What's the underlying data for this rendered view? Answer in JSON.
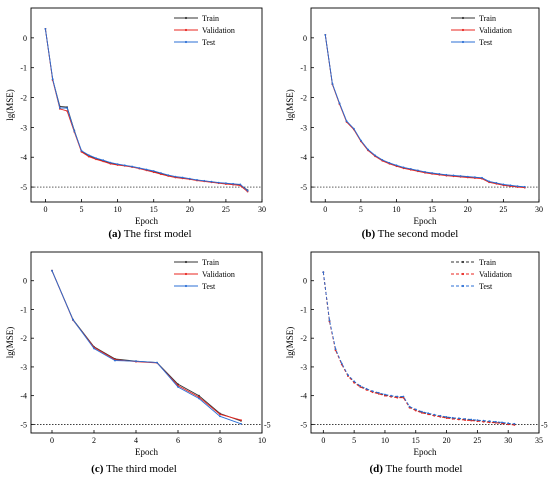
{
  "chart_data": [
    {
      "type": "line",
      "caption_bold": "(a)",
      "caption_text": " The first model",
      "xlabel": "Epoch",
      "ylabel": "lg(MSE)",
      "xlim": [
        -2,
        30
      ],
      "ylim": [
        -5.5,
        1
      ],
      "xticks": [
        "0",
        "5",
        "10",
        "15",
        "20",
        "25",
        "30"
      ],
      "yticks": [
        "0",
        "-1",
        "-2",
        "-3",
        "-4",
        "-5"
      ],
      "ref_label": "",
      "legend_position": "top-right",
      "series": [
        {
          "name": "Train",
          "color": "#333333",
          "dash": "",
          "x": [
            0,
            1,
            2,
            3,
            4,
            5,
            6,
            7,
            8,
            9,
            10,
            11,
            12,
            13,
            14,
            15,
            16,
            17,
            18,
            19,
            20,
            21,
            22,
            23,
            24,
            25,
            26,
            27,
            28
          ],
          "y": [
            0.3,
            -1.4,
            -2.3,
            -2.32,
            -3.1,
            -3.8,
            -3.95,
            -4.05,
            -4.12,
            -4.2,
            -4.25,
            -4.28,
            -4.32,
            -4.37,
            -4.42,
            -4.48,
            -4.55,
            -4.62,
            -4.67,
            -4.7,
            -4.73,
            -4.77,
            -4.8,
            -4.83,
            -4.86,
            -4.88,
            -4.91,
            -4.93,
            -5.1
          ]
        },
        {
          "name": "Validation",
          "color": "#e8251f",
          "dash": "",
          "x": [
            0,
            1,
            2,
            3,
            4,
            5,
            6,
            7,
            8,
            9,
            10,
            11,
            12,
            13,
            14,
            15,
            16,
            17,
            18,
            19,
            20,
            21,
            22,
            23,
            24,
            25,
            26,
            27,
            28
          ],
          "y": [
            0.3,
            -1.42,
            -2.38,
            -2.45,
            -3.15,
            -3.82,
            -3.98,
            -4.07,
            -4.14,
            -4.22,
            -4.26,
            -4.29,
            -4.33,
            -4.38,
            -4.44,
            -4.5,
            -4.57,
            -4.63,
            -4.68,
            -4.71,
            -4.74,
            -4.78,
            -4.81,
            -4.84,
            -4.87,
            -4.9,
            -4.92,
            -4.95,
            -5.15
          ]
        },
        {
          "name": "Test",
          "color": "#2b6fd6",
          "dash": "",
          "x": [
            0,
            1,
            2,
            3,
            4,
            5,
            6,
            7,
            8,
            9,
            10,
            11,
            12,
            13,
            14,
            15,
            16,
            17,
            18,
            19,
            20,
            21,
            22,
            23,
            24,
            25,
            26,
            27,
            28
          ],
          "y": [
            0.3,
            -1.38,
            -2.35,
            -2.35,
            -3.12,
            -3.78,
            -3.93,
            -4.03,
            -4.1,
            -4.18,
            -4.23,
            -4.27,
            -4.31,
            -4.36,
            -4.41,
            -4.46,
            -4.53,
            -4.6,
            -4.65,
            -4.68,
            -4.72,
            -4.76,
            -4.79,
            -4.82,
            -4.85,
            -4.87,
            -4.89,
            -4.91,
            -5.12
          ]
        }
      ]
    },
    {
      "type": "line",
      "caption_bold": "(b)",
      "caption_text": " The second model",
      "xlabel": "Epoch",
      "ylabel": "lg(MSE)",
      "xlim": [
        -2,
        30
      ],
      "ylim": [
        -5.5,
        1
      ],
      "xticks": [
        "0",
        "5",
        "10",
        "15",
        "20",
        "25",
        "30"
      ],
      "yticks": [
        "0",
        "-1",
        "-2",
        "-3",
        "-4",
        "-5"
      ],
      "ref_label": "",
      "legend_position": "top-right",
      "series": [
        {
          "name": "Train",
          "color": "#333333",
          "dash": "",
          "x": [
            0,
            1,
            2,
            3,
            4,
            5,
            6,
            7,
            8,
            9,
            10,
            11,
            12,
            13,
            14,
            15,
            16,
            17,
            18,
            19,
            20,
            21,
            22,
            23,
            24,
            25,
            26,
            27,
            28
          ],
          "y": [
            0.1,
            -1.55,
            -2.2,
            -2.8,
            -3.05,
            -3.45,
            -3.75,
            -3.95,
            -4.1,
            -4.2,
            -4.28,
            -4.35,
            -4.4,
            -4.45,
            -4.5,
            -4.54,
            -4.57,
            -4.6,
            -4.62,
            -4.64,
            -4.66,
            -4.68,
            -4.7,
            -4.82,
            -4.87,
            -4.92,
            -4.95,
            -4.98,
            -5.0
          ]
        },
        {
          "name": "Validation",
          "color": "#e8251f",
          "dash": "",
          "x": [
            0,
            1,
            2,
            3,
            4,
            5,
            6,
            7,
            8,
            9,
            10,
            11,
            12,
            13,
            14,
            15,
            16,
            17,
            18,
            19,
            20,
            21,
            22,
            23,
            24,
            25,
            26,
            27,
            28
          ],
          "y": [
            0.1,
            -1.56,
            -2.22,
            -2.82,
            -3.07,
            -3.47,
            -3.77,
            -3.97,
            -4.12,
            -4.22,
            -4.3,
            -4.37,
            -4.42,
            -4.47,
            -4.52,
            -4.56,
            -4.59,
            -4.62,
            -4.64,
            -4.66,
            -4.68,
            -4.7,
            -4.72,
            -4.84,
            -4.89,
            -4.94,
            -4.97,
            -5.0,
            -5.02
          ]
        },
        {
          "name": "Test",
          "color": "#2b6fd6",
          "dash": "",
          "x": [
            0,
            1,
            2,
            3,
            4,
            5,
            6,
            7,
            8,
            9,
            10,
            11,
            12,
            13,
            14,
            15,
            16,
            17,
            18,
            19,
            20,
            21,
            22,
            23,
            24,
            25,
            26,
            27,
            28
          ],
          "y": [
            0.1,
            -1.54,
            -2.19,
            -2.79,
            -3.04,
            -3.44,
            -3.74,
            -3.94,
            -4.09,
            -4.19,
            -4.27,
            -4.34,
            -4.39,
            -4.44,
            -4.49,
            -4.53,
            -4.56,
            -4.59,
            -4.61,
            -4.63,
            -4.65,
            -4.67,
            -4.69,
            -4.81,
            -4.86,
            -4.91,
            -4.94,
            -4.97,
            -4.99
          ]
        }
      ]
    },
    {
      "type": "line",
      "caption_bold": "(c)",
      "caption_text": " The third model",
      "xlabel": "Epoch",
      "ylabel": "lg(MSE)",
      "xlim": [
        -1,
        10
      ],
      "ylim": [
        -5.3,
        1
      ],
      "xticks": [
        "0",
        "2",
        "4",
        "6",
        "8",
        "10"
      ],
      "yticks": [
        "0",
        "-1",
        "-2",
        "-3",
        "-4",
        "-5"
      ],
      "ref_label": "-5",
      "legend_position": "top-right",
      "series": [
        {
          "name": "Train",
          "color": "#333333",
          "dash": "",
          "x": [
            0,
            1,
            2,
            3,
            4,
            5,
            6,
            7,
            8,
            9
          ],
          "y": [
            0.35,
            -1.35,
            -2.3,
            -2.72,
            -2.8,
            -2.85,
            -3.6,
            -4.0,
            -4.62,
            -4.88
          ]
        },
        {
          "name": "Validation",
          "color": "#e8251f",
          "dash": "",
          "x": [
            0,
            1,
            2,
            3,
            4,
            5,
            6,
            7,
            8,
            9
          ],
          "y": [
            0.35,
            -1.37,
            -2.32,
            -2.75,
            -2.82,
            -2.86,
            -3.65,
            -4.05,
            -4.65,
            -4.85
          ]
        },
        {
          "name": "Test",
          "color": "#2b6fd6",
          "dash": "",
          "x": [
            0,
            1,
            2,
            3,
            4,
            5,
            6,
            7,
            8,
            9
          ],
          "y": [
            0.35,
            -1.36,
            -2.36,
            -2.78,
            -2.8,
            -2.85,
            -3.7,
            -4.1,
            -4.72,
            -4.98
          ]
        }
      ]
    },
    {
      "type": "line",
      "caption_bold": "(d)",
      "caption_text": " The fourth model",
      "xlabel": "Epoch",
      "ylabel": "lg(MSE)",
      "xlim": [
        -2,
        35
      ],
      "ylim": [
        -5.3,
        1
      ],
      "xticks": [
        "0",
        "5",
        "10",
        "15",
        "20",
        "25",
        "30",
        "35"
      ],
      "yticks": [
        "0",
        "-1",
        "-2",
        "-3",
        "-4",
        "-5"
      ],
      "ref_label": "-5",
      "legend_position": "top-right",
      "series": [
        {
          "name": "Train",
          "color": "#333333",
          "dash": "3,2",
          "x": [
            0,
            1,
            2,
            3,
            4,
            5,
            6,
            7,
            8,
            9,
            10,
            11,
            12,
            13,
            14,
            15,
            16,
            17,
            18,
            19,
            20,
            21,
            22,
            23,
            24,
            25,
            26,
            27,
            28,
            29,
            30,
            31
          ],
          "y": [
            0.3,
            -1.4,
            -2.4,
            -2.9,
            -3.3,
            -3.52,
            -3.68,
            -3.78,
            -3.86,
            -3.92,
            -3.98,
            -4.02,
            -4.05,
            -4.05,
            -4.4,
            -4.5,
            -4.58,
            -4.63,
            -4.68,
            -4.72,
            -4.76,
            -4.79,
            -4.81,
            -4.83,
            -4.85,
            -4.87,
            -4.89,
            -4.91,
            -4.93,
            -4.95,
            -4.98,
            -5.0
          ]
        },
        {
          "name": "Validation",
          "color": "#e8251f",
          "dash": "3,2",
          "x": [
            0,
            1,
            2,
            3,
            4,
            5,
            6,
            7,
            8,
            9,
            10,
            11,
            12,
            13,
            14,
            15,
            16,
            17,
            18,
            19,
            20,
            21,
            22,
            23,
            24,
            25,
            26,
            27,
            28,
            29,
            30,
            31
          ],
          "y": [
            0.3,
            -1.42,
            -2.42,
            -2.92,
            -3.32,
            -3.55,
            -3.7,
            -3.8,
            -3.88,
            -3.94,
            -4.0,
            -4.04,
            -4.07,
            -4.07,
            -4.42,
            -4.52,
            -4.6,
            -4.65,
            -4.7,
            -4.74,
            -4.78,
            -4.81,
            -4.83,
            -4.85,
            -4.87,
            -4.89,
            -4.91,
            -4.93,
            -4.95,
            -4.97,
            -5.0,
            -5.02
          ]
        },
        {
          "name": "Test",
          "color": "#2b6fd6",
          "dash": "3,2",
          "x": [
            0,
            1,
            2,
            3,
            4,
            5,
            6,
            7,
            8,
            9,
            10,
            11,
            12,
            13,
            14,
            15,
            16,
            17,
            18,
            19,
            20,
            21,
            22,
            23,
            24,
            25,
            26,
            27,
            28,
            29,
            30,
            31
          ],
          "y": [
            0.3,
            -1.38,
            -2.38,
            -2.88,
            -3.28,
            -3.5,
            -3.66,
            -3.76,
            -3.84,
            -3.9,
            -3.96,
            -4.0,
            -4.03,
            -4.03,
            -4.38,
            -4.48,
            -4.56,
            -4.61,
            -4.66,
            -4.7,
            -4.74,
            -4.77,
            -4.79,
            -4.81,
            -4.83,
            -4.85,
            -4.87,
            -4.89,
            -4.91,
            -4.93,
            -4.96,
            -4.98
          ]
        }
      ]
    }
  ]
}
